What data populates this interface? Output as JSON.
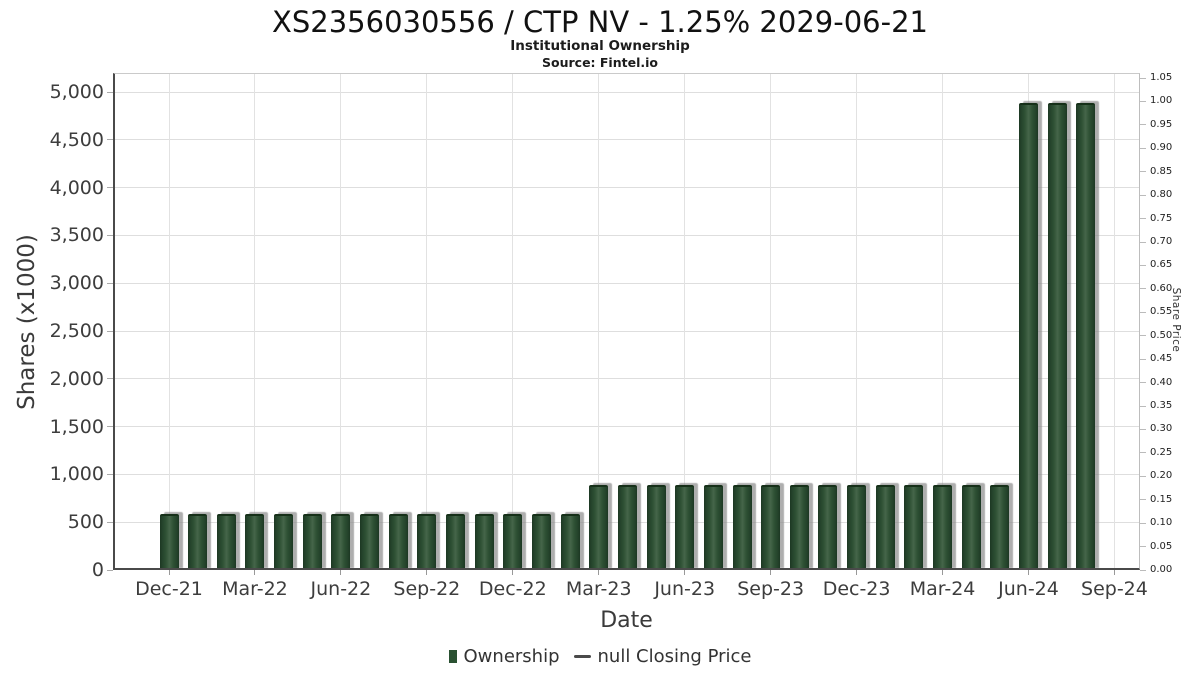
{
  "header": {
    "title": "XS2356030556 / CTP NV - 1.25% 2029-06-21",
    "subtitle": "Institutional Ownership",
    "source": "Source: Fintel.io"
  },
  "chart_data": {
    "type": "bar",
    "title": "XS2356030556 / CTP NV - 1.25% 2029-06-21",
    "subtitle": "Institutional Ownership",
    "source": "Source: Fintel.io",
    "xlabel": "Date",
    "ylabel_left": "Shares (x1000)",
    "ylabel_right": "Share Price",
    "grid": true,
    "categories": [
      "Dec-21",
      "Jan-22",
      "Feb-22",
      "Mar-22",
      "Apr-22",
      "May-22",
      "Jun-22",
      "Jul-22",
      "Aug-22",
      "Sep-22",
      "Oct-22",
      "Nov-22",
      "Dec-22",
      "Jan-23",
      "Feb-23",
      "Mar-23",
      "Apr-23",
      "May-23",
      "Jun-23",
      "Jul-23",
      "Aug-23",
      "Sep-23",
      "Oct-23",
      "Nov-23",
      "Dec-23",
      "Jan-24",
      "Feb-24",
      "Mar-24",
      "Apr-24",
      "May-24",
      "Jun-24",
      "Jul-24",
      "Aug-24"
    ],
    "series": [
      {
        "name": "Ownership",
        "values": [
          590,
          590,
          590,
          590,
          590,
          590,
          590,
          590,
          590,
          590,
          590,
          590,
          590,
          590,
          590,
          890,
          890,
          890,
          890,
          890,
          890,
          890,
          890,
          890,
          890,
          890,
          890,
          890,
          890,
          890,
          4890,
          4890,
          4890
        ]
      }
    ],
    "x_tick_labels": [
      "Dec-21",
      "Mar-22",
      "Jun-22",
      "Sep-22",
      "Dec-22",
      "Mar-23",
      "Jun-23",
      "Sep-23",
      "Dec-23",
      "Mar-24",
      "Jun-24",
      "Sep-24"
    ],
    "left_axis": {
      "title": "Shares (x1000)",
      "ylim": [
        0,
        5200
      ],
      "tick_step": 500,
      "tick_labels": [
        "0",
        "500",
        "1,000",
        "1,500",
        "2,000",
        "2,500",
        "3,000",
        "3,500",
        "4,000",
        "4,500",
        "5,000"
      ]
    },
    "right_axis": {
      "title": "Share Price",
      "ylim": [
        0,
        1.05
      ],
      "tick_step": 0.05,
      "tick_labels": [
        "0.00",
        "0.05",
        "0.10",
        "0.15",
        "0.20",
        "0.25",
        "0.30",
        "0.35",
        "0.40",
        "0.45",
        "0.50",
        "0.55",
        "0.60",
        "0.65",
        "0.70",
        "0.75",
        "0.80",
        "0.85",
        "0.90",
        "0.95",
        "1.00",
        "1.05"
      ]
    },
    "legend": {
      "position": "bottom",
      "items": [
        {
          "label": "Ownership",
          "marker": "square",
          "color": "#2a5132"
        },
        {
          "label": "null Closing Price",
          "marker": "dash",
          "color": "#4a4a4a"
        }
      ]
    },
    "bar_color": "#2b4d33",
    "colors": {
      "gridline": "#dedede",
      "axis_spine": "#4a4a4a",
      "tick_text": "#3d3d3d"
    }
  }
}
